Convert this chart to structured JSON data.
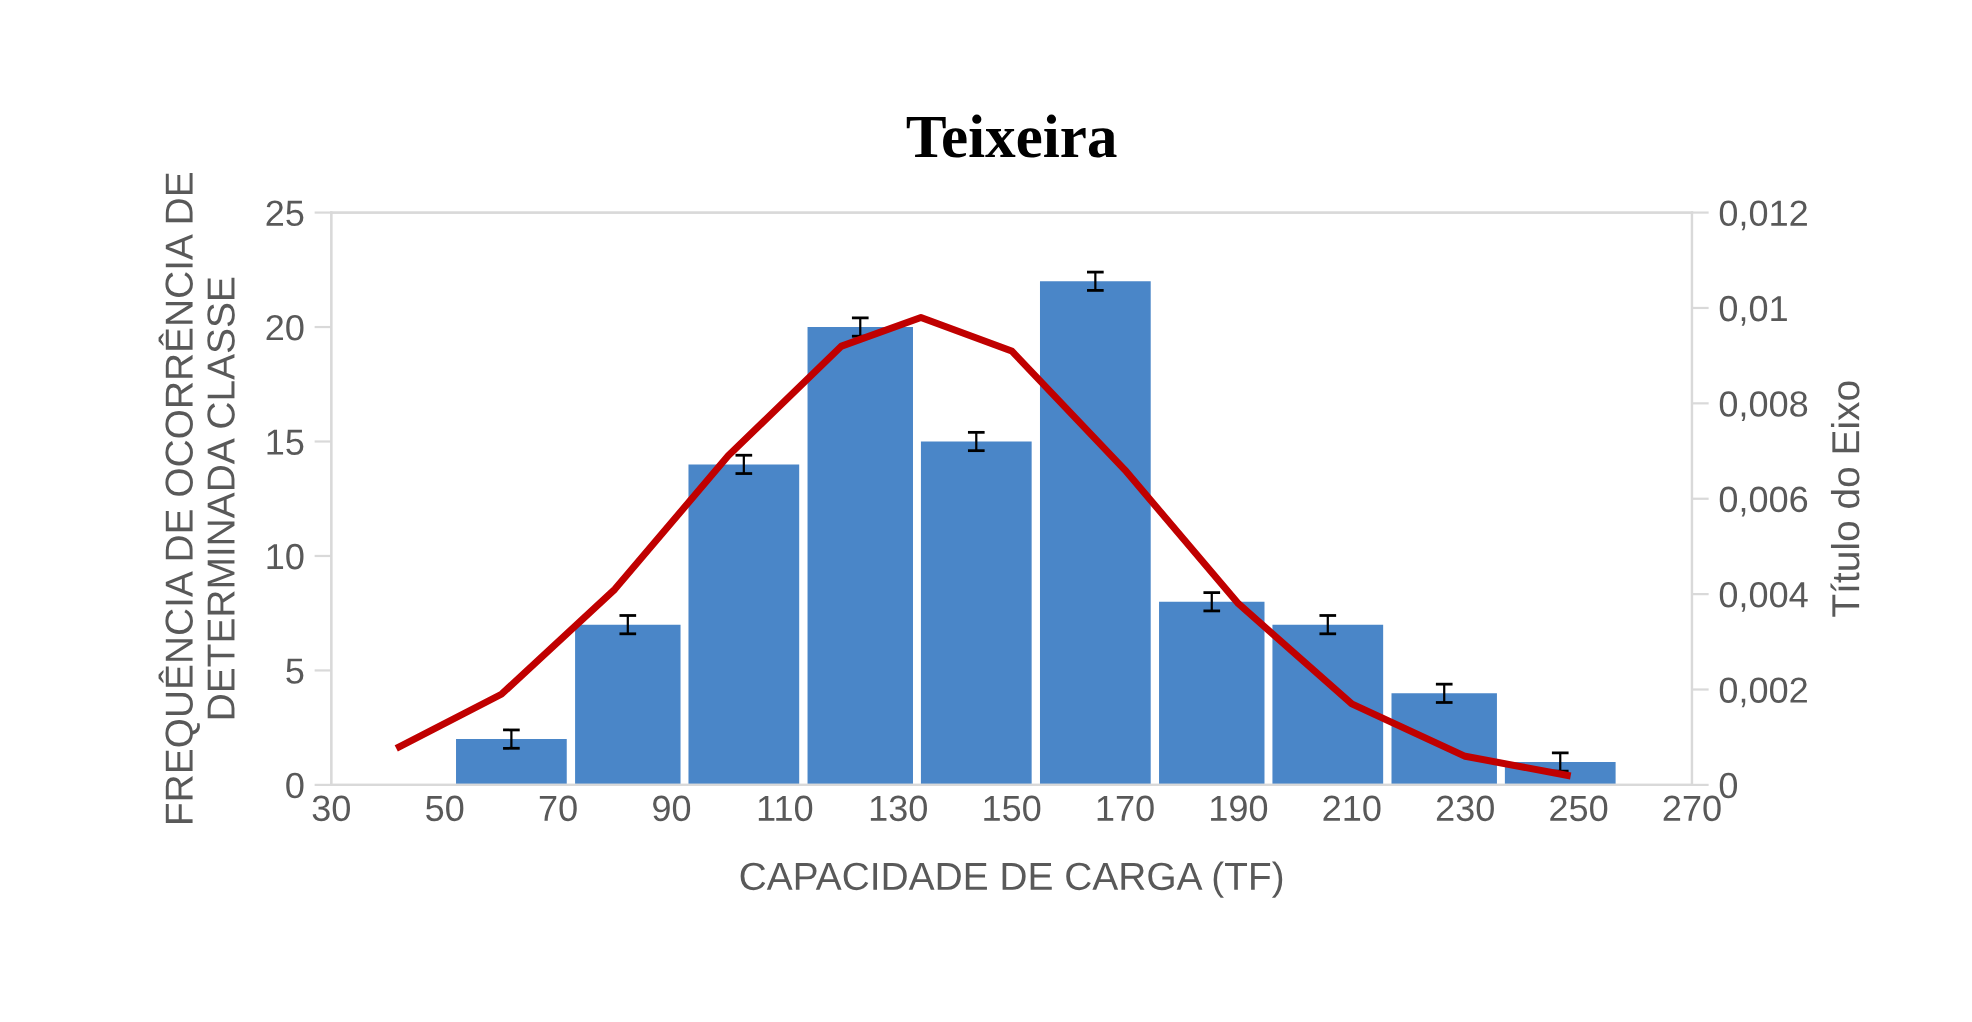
{
  "chart_data": {
    "type": "histogram",
    "title": "Teixeira",
    "xlabel": "CAPACIDADE DE CARGA (TF)",
    "ylabel": "FREQUÊNCIA DE OCORRÊNCIA DE\nDETERMINADA CLASSE",
    "y2label": "Título do Eixo",
    "bins": [
      52,
      73,
      93,
      114,
      134,
      155,
      176,
      196,
      217,
      237,
      258
    ],
    "series": [
      {
        "color": "#4a86c8",
        "values": [
          2,
          7,
          14,
          20,
          15,
          22,
          8,
          7,
          4,
          1
        ],
        "errors": [
          0.4,
          0.4,
          0.4,
          0.4,
          0.4,
          0.4,
          0.4,
          0.4,
          0.4,
          0.4
        ]
      },
      {
        "type": "line",
        "axis": "y2",
        "color": "#c00000",
        "x": [
          42,
          60,
          80,
          100,
          120,
          134,
          150,
          170,
          190,
          210,
          230,
          248
        ],
        "values": [
          0.0008,
          0.0019,
          0.0041,
          0.0069,
          0.0092,
          0.0098,
          0.0091,
          0.0066,
          0.0038,
          0.0017,
          0.0006,
          0.0002
        ]
      }
    ],
    "xlim": [
      30,
      270
    ],
    "xticks": [
      30,
      50,
      70,
      90,
      110,
      130,
      150,
      170,
      190,
      210,
      230,
      250,
      270
    ],
    "ylim": [
      0,
      25
    ],
    "yticks": [
      0,
      5,
      10,
      15,
      20,
      25
    ],
    "y2lim": [
      0,
      0.012
    ],
    "y2ticks": [
      0,
      {
        "value": 0.002,
        "label": "0,002"
      },
      {
        "value": 0.004,
        "label": "0,004"
      },
      {
        "value": 0.006,
        "label": "0,006"
      },
      {
        "value": 0.008,
        "label": "0,008"
      },
      {
        "value": 0.01,
        "label": "0,01"
      },
      {
        "value": 0.012,
        "label": "0,012"
      }
    ],
    "grid": false,
    "legend": false,
    "marker": "none",
    "line_style": "solid"
  }
}
